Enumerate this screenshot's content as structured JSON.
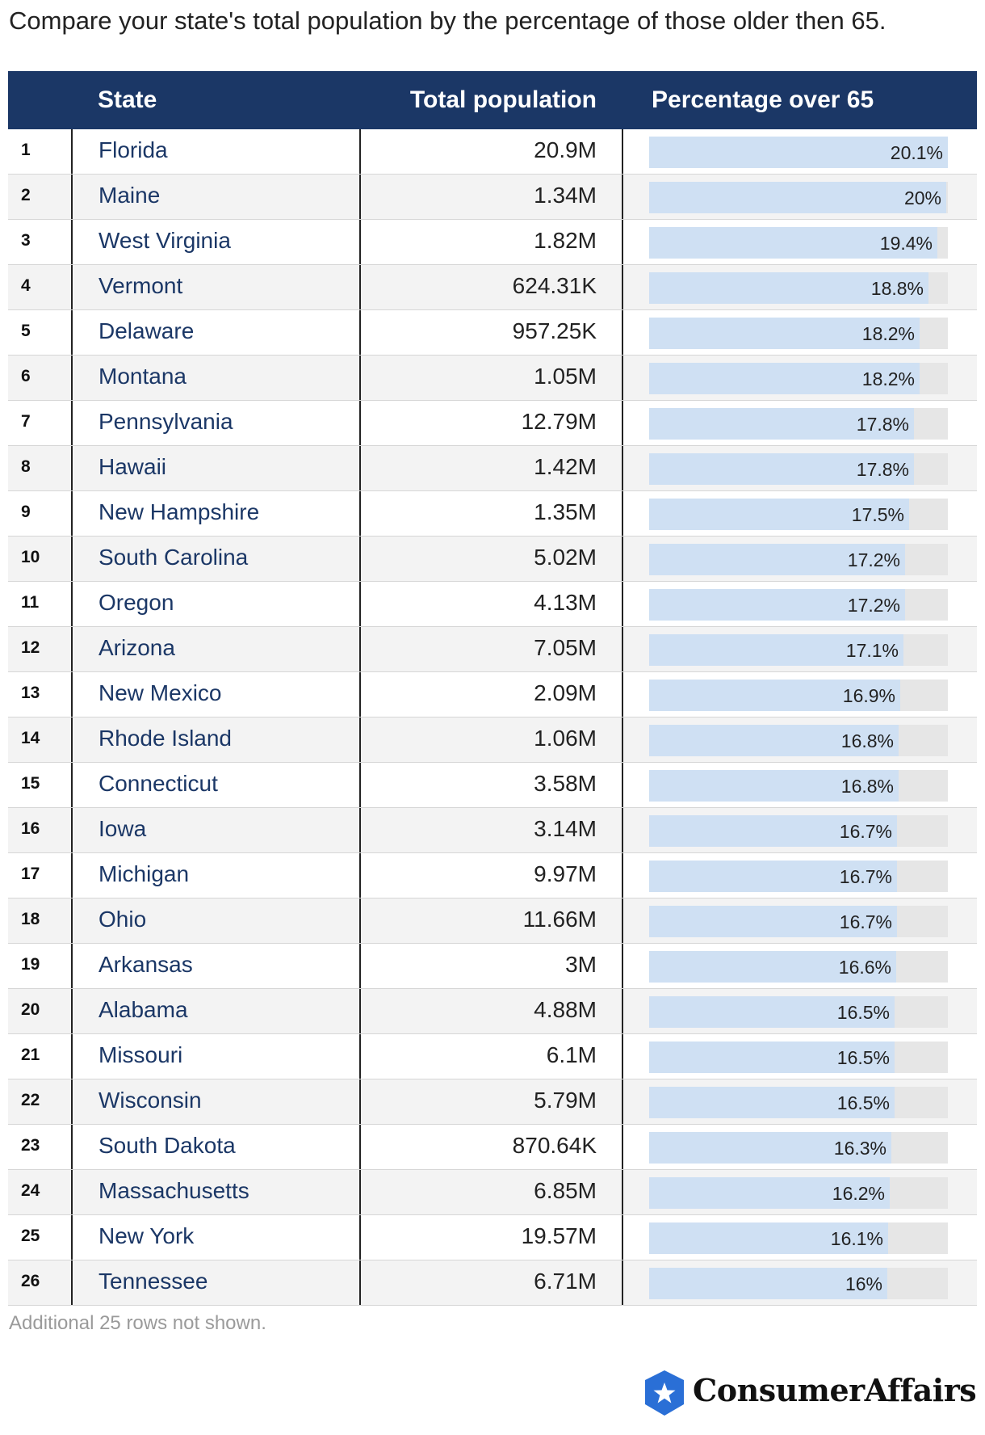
{
  "title": "Compare your state's total population by the percentage of those older then 65.",
  "headers": {
    "state": "State",
    "population": "Total population",
    "percentage": "Percentage over 65"
  },
  "note": "Additional 25 rows not shown.",
  "brand": "ConsumerAffairs",
  "colors": {
    "header_bg": "#1b3766",
    "state_text": "#1b3766",
    "bar_fill": "#cfe0f3",
    "bar_track": "#e6e6e6"
  },
  "bar_scale_max": 20.1,
  "chart_data": {
    "type": "table",
    "title": "Compare your state's total population by the percentage of those older then 65.",
    "columns": [
      "State",
      "Total population",
      "Percentage over 65"
    ],
    "rows": [
      {
        "rank": "1",
        "state": "Florida",
        "population": "20.9M",
        "pct_label": "20.1%",
        "pct": 20.1
      },
      {
        "rank": "2",
        "state": "Maine",
        "population": "1.34M",
        "pct_label": "20%",
        "pct": 20.0
      },
      {
        "rank": "3",
        "state": "West Virginia",
        "population": "1.82M",
        "pct_label": "19.4%",
        "pct": 19.4
      },
      {
        "rank": "4",
        "state": "Vermont",
        "population": "624.31K",
        "pct_label": "18.8%",
        "pct": 18.8
      },
      {
        "rank": "5",
        "state": "Delaware",
        "population": "957.25K",
        "pct_label": "18.2%",
        "pct": 18.2
      },
      {
        "rank": "6",
        "state": "Montana",
        "population": "1.05M",
        "pct_label": "18.2%",
        "pct": 18.2
      },
      {
        "rank": "7",
        "state": "Pennsylvania",
        "population": "12.79M",
        "pct_label": "17.8%",
        "pct": 17.8
      },
      {
        "rank": "8",
        "state": "Hawaii",
        "population": "1.42M",
        "pct_label": "17.8%",
        "pct": 17.8
      },
      {
        "rank": "9",
        "state": "New Hampshire",
        "population": "1.35M",
        "pct_label": "17.5%",
        "pct": 17.5
      },
      {
        "rank": "10",
        "state": "South Carolina",
        "population": "5.02M",
        "pct_label": "17.2%",
        "pct": 17.2
      },
      {
        "rank": "11",
        "state": "Oregon",
        "population": "4.13M",
        "pct_label": "17.2%",
        "pct": 17.2
      },
      {
        "rank": "12",
        "state": "Arizona",
        "population": "7.05M",
        "pct_label": "17.1%",
        "pct": 17.1
      },
      {
        "rank": "13",
        "state": "New Mexico",
        "population": "2.09M",
        "pct_label": "16.9%",
        "pct": 16.9
      },
      {
        "rank": "14",
        "state": "Rhode Island",
        "population": "1.06M",
        "pct_label": "16.8%",
        "pct": 16.8
      },
      {
        "rank": "15",
        "state": "Connecticut",
        "population": "3.58M",
        "pct_label": "16.8%",
        "pct": 16.8
      },
      {
        "rank": "16",
        "state": "Iowa",
        "population": "3.14M",
        "pct_label": "16.7%",
        "pct": 16.7
      },
      {
        "rank": "17",
        "state": "Michigan",
        "population": "9.97M",
        "pct_label": "16.7%",
        "pct": 16.7
      },
      {
        "rank": "18",
        "state": "Ohio",
        "population": "11.66M",
        "pct_label": "16.7%",
        "pct": 16.7
      },
      {
        "rank": "19",
        "state": "Arkansas",
        "population": "3M",
        "pct_label": "16.6%",
        "pct": 16.6
      },
      {
        "rank": "20",
        "state": "Alabama",
        "population": "4.88M",
        "pct_label": "16.5%",
        "pct": 16.5
      },
      {
        "rank": "21",
        "state": "Missouri",
        "population": "6.1M",
        "pct_label": "16.5%",
        "pct": 16.5
      },
      {
        "rank": "22",
        "state": "Wisconsin",
        "population": "5.79M",
        "pct_label": "16.5%",
        "pct": 16.5
      },
      {
        "rank": "23",
        "state": "South Dakota",
        "population": "870.64K",
        "pct_label": "16.3%",
        "pct": 16.3
      },
      {
        "rank": "24",
        "state": "Massachusetts",
        "population": "6.85M",
        "pct_label": "16.2%",
        "pct": 16.2
      },
      {
        "rank": "25",
        "state": "New York",
        "population": "19.57M",
        "pct_label": "16.1%",
        "pct": 16.1
      },
      {
        "rank": "26",
        "state": "Tennessee",
        "population": "6.71M",
        "pct_label": "16%",
        "pct": 16.0
      }
    ]
  }
}
